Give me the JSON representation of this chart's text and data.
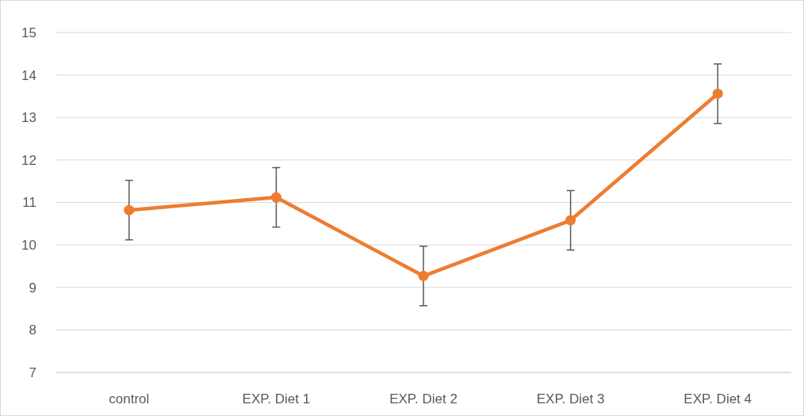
{
  "chart_data": {
    "type": "line",
    "categories": [
      "control",
      "EXP. Diet 1",
      "EXP. Diet 2",
      "EXP. Diet 3",
      "EXP. Diet 4"
    ],
    "series": [
      {
        "color": "#ed7d31",
        "values": [
          10.82,
          11.12,
          9.27,
          10.58,
          13.56
        ],
        "errors": [
          0.7,
          0.7,
          0.7,
          0.7,
          0.7
        ]
      }
    ],
    "ylim": [
      7,
      15
    ],
    "yticks": [
      7,
      8,
      9,
      10,
      11,
      12,
      13,
      14,
      15
    ],
    "grid": "y",
    "marker": "circle",
    "line_style": "solid"
  }
}
